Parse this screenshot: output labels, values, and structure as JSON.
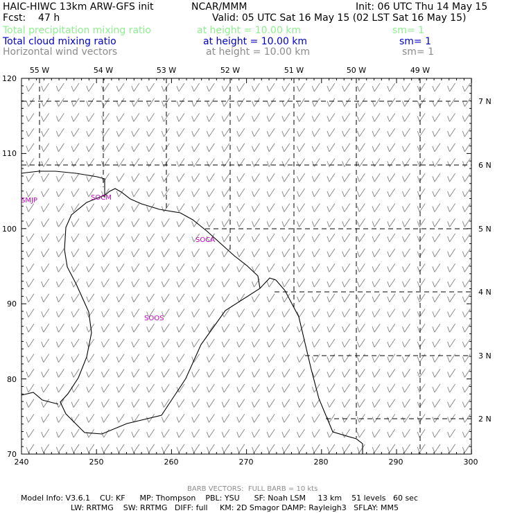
{
  "header": {
    "model_title": "HAIC-HIWC 13km ARW-GFS init",
    "org": "NCAR/MMM",
    "init_time": "Init: 06 UTC Thu 14 May 15",
    "forecast": "Fcst:    47 h",
    "valid_time": "Valid: 05 UTC Sat 16 May 15 (02 LST Sat 16 May 15)",
    "fields": [
      {
        "name": "Total precipitation mixing ratio",
        "level": "at height = 10.00 km",
        "smooth": "sm= 1",
        "color": "#90ee90"
      },
      {
        "name": "Total cloud mixing ratio",
        "level": "at height = 10.00 km",
        "smooth": "sm= 1",
        "color": "#0000c8"
      },
      {
        "name": "Horizontal wind vectors",
        "level": "at height = 10.00 km",
        "smooth": "sm= 1",
        "color": "#8c8c8c"
      }
    ]
  },
  "map": {
    "top_lon_labels": [
      "55 W",
      "54 W",
      "53 W",
      "52 W",
      "51 W",
      "50 W",
      "49 W"
    ],
    "right_lat_labels": [
      "7 N",
      "6 N",
      "5 N",
      "4 N",
      "3 N",
      "2 N"
    ],
    "left_ticks": [
      "120",
      "110",
      "100",
      "90",
      "80",
      "70"
    ],
    "bottom_ticks": [
      "240",
      "250",
      "260",
      "270",
      "280",
      "290",
      "300"
    ],
    "stations": [
      "SMJP",
      "SOCM",
      "SOCA",
      "SOOS"
    ],
    "colors": {
      "coast": "#000000",
      "grid": "#000000",
      "barbs": "#8c8c8c",
      "stations": "#c000c0"
    },
    "wind_barbs": {
      "display": "full barb",
      "direction_from": "northwest",
      "speed_kts": 10
    }
  },
  "footer": {
    "barb_legend": "BARB VECTORS:  FULL BARB = 10 kts",
    "line1": "Model Info: V3.6.1    CU: KF      MP: Thompson    PBL: YSU      SF: Noah LSM     13 km    51 levels   60 sec",
    "line2": "LW: RRTMG    SW: RRTMG   DIFF: full     KM: 2D Smagor DAMP: Rayleigh3   SFLAY: MM5"
  }
}
